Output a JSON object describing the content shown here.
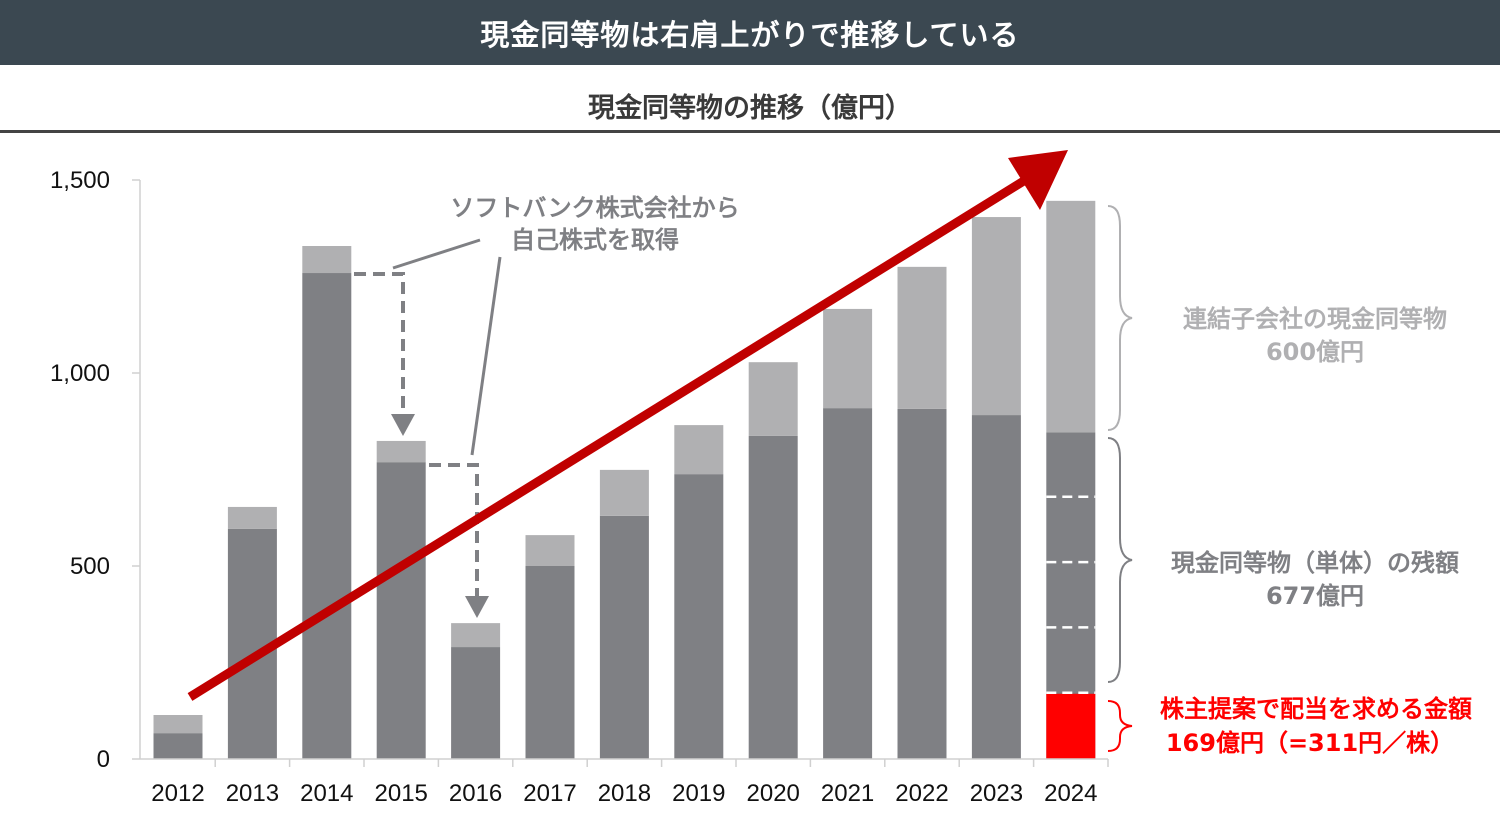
{
  "header": {
    "title": "現金同等物は右肩上がりで推移している"
  },
  "chart_data": {
    "type": "bar",
    "stacked": true,
    "title": "現金同等物の推移（億円）",
    "categories": [
      "2012",
      "2013",
      "2014",
      "2015",
      "2016",
      "2017",
      "2018",
      "2019",
      "2020",
      "2021",
      "2022",
      "2023",
      "2024"
    ],
    "series": [
      {
        "color": "#7f8084",
        "values": [
          67,
          596,
          1259,
          769,
          290,
          500,
          630,
          738,
          837,
          909,
          907,
          891,
          846
        ]
      },
      {
        "color": "#b0b0b2",
        "values": [
          47,
          57,
          70,
          55,
          62,
          80,
          119,
          127,
          191,
          257,
          368,
          513,
          600
        ]
      }
    ],
    "highlight": {
      "category": "2024",
      "value": 169,
      "color": "#ff0000"
    },
    "ylim": [
      0,
      1500
    ],
    "yticks": [
      0,
      500,
      1000,
      1500
    ],
    "ytick_labels": [
      "0",
      "500",
      "1,000",
      "1,500"
    ],
    "grid": false,
    "annotations": {
      "buyback": [
        "ソフトバンク株式会社から",
        "自己株式を取得"
      ],
      "subsidiaries": [
        "連結子会社の現金同等物",
        "600億円"
      ],
      "standalone": [
        "現金同等物（単体）の残額",
        "677億円"
      ],
      "dividend": [
        "株主提案で配当を求める金額",
        "169億円（=311円／株）"
      ]
    },
    "trend_arrow_color": "#c00000"
  }
}
